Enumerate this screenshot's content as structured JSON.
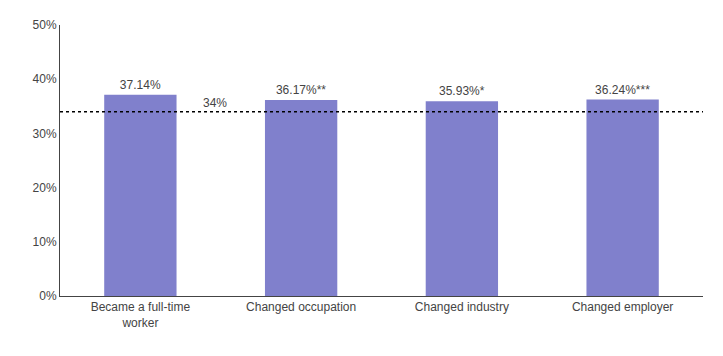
{
  "chart_data": {
    "type": "bar",
    "categories": [
      "Became a full-time\nworker",
      "Changed occupation",
      "Changed industry",
      "Changed employer"
    ],
    "values": [
      37.14,
      36.17,
      35.93,
      36.24
    ],
    "value_labels": [
      "37.14%",
      "36.17%**",
      "35.93%*",
      "36.24%***"
    ],
    "data_labels": true,
    "color": "#8080cc",
    "reference_line": {
      "value": 34,
      "label": "34%"
    },
    "ylim": [
      0,
      50
    ],
    "yticks": [
      {
        "value": 0,
        "label": "0%"
      },
      {
        "value": 10,
        "label": "10%"
      },
      {
        "value": 20,
        "label": "20%"
      },
      {
        "value": 30,
        "label": "30%"
      },
      {
        "value": 40,
        "label": "40%"
      },
      {
        "value": 50,
        "label": "50%"
      }
    ],
    "grid": false
  }
}
